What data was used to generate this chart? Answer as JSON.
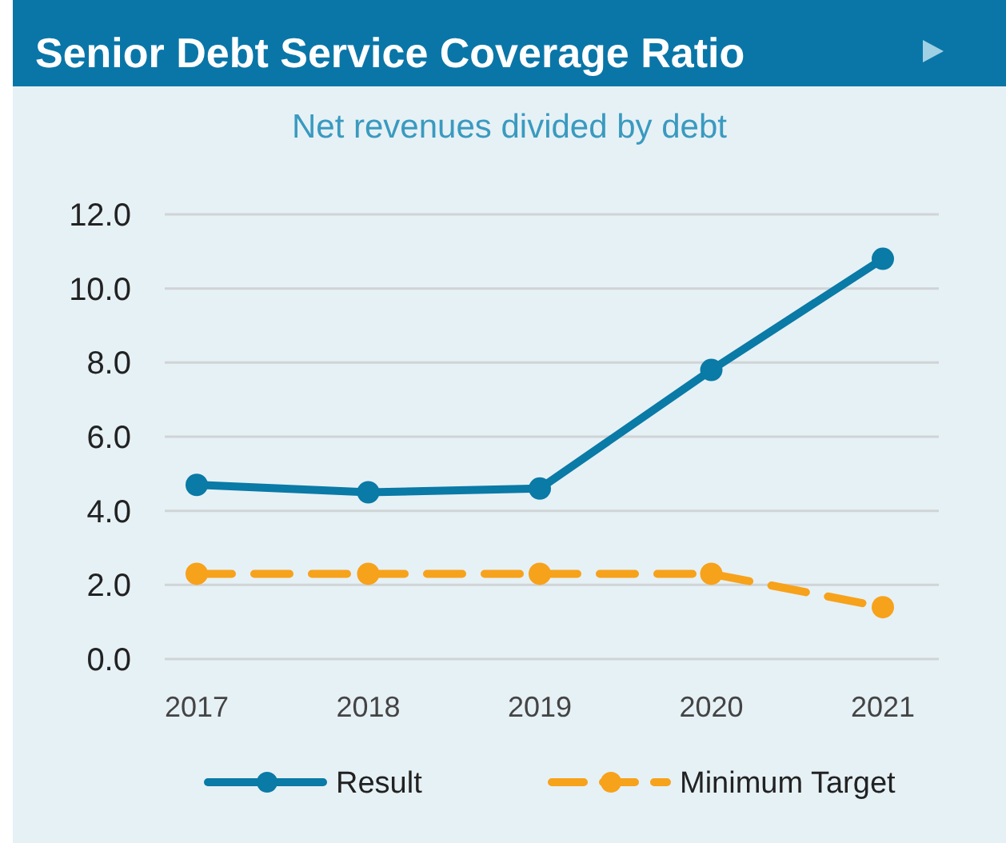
{
  "chart_data": {
    "type": "line",
    "title": "Senior Debt Service Coverage Ratio",
    "subtitle": "Net revenues divided by debt",
    "categories": [
      "2017",
      "2018",
      "2019",
      "2020",
      "2021"
    ],
    "series": [
      {
        "name": "Result",
        "color": "#0a7aa6",
        "values": [
          4.7,
          4.5,
          4.6,
          7.8,
          10.8
        ],
        "line_style": "solid"
      },
      {
        "name": "Minimum Target",
        "color": "#f7a21b",
        "values": [
          2.3,
          2.3,
          2.3,
          2.3,
          1.4
        ],
        "line_style": "dashed"
      }
    ],
    "ylim": [
      0,
      12
    ],
    "yticks": [
      {
        "value": 0,
        "label": "0.0"
      },
      {
        "value": 2,
        "label": "2.0"
      },
      {
        "value": 4,
        "label": "4.0"
      },
      {
        "value": 6,
        "label": "6.0"
      },
      {
        "value": 8,
        "label": "8.0"
      },
      {
        "value": 10,
        "label": "10.0"
      },
      {
        "value": 12,
        "label": "12.0"
      }
    ],
    "grid": "y",
    "legend": "bottom",
    "marker": "circle"
  }
}
